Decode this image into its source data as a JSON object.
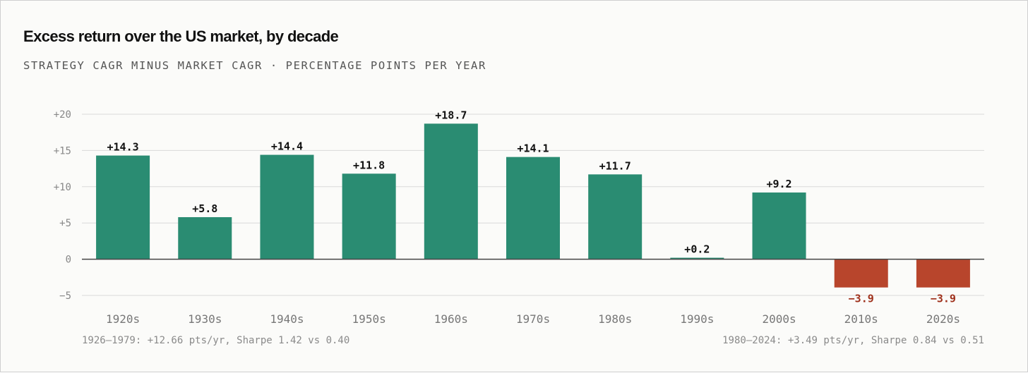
{
  "chart_data": {
    "type": "bar",
    "title": "Excess return over the US market, by decade",
    "subtitle": "STRATEGY CAGR MINUS MARKET CAGR · PERCENTAGE POINTS PER YEAR",
    "categories": [
      "1920s",
      "1930s",
      "1940s",
      "1950s",
      "1960s",
      "1970s",
      "1980s",
      "1990s",
      "2000s",
      "2010s",
      "2020s"
    ],
    "values": [
      14.3,
      5.8,
      14.4,
      11.8,
      18.7,
      14.1,
      11.7,
      0.2,
      9.2,
      -3.9,
      -3.9
    ],
    "data_labels": [
      "+14.3",
      "+5.8",
      "+14.4",
      "+11.8",
      "+18.7",
      "+14.1",
      "+11.7",
      "+0.2",
      "+9.2",
      "−3.9",
      "−3.9"
    ],
    "yticks": [
      20,
      15,
      10,
      5,
      0,
      -5
    ],
    "ytick_labels": [
      "+20",
      "+15",
      "+10",
      "+5",
      "0",
      "−5"
    ],
    "ylim": [
      -5,
      20
    ],
    "xlabel": "",
    "ylabel": "",
    "grid": true,
    "colors": {
      "positive": "#2a8c72",
      "negative": "#b8452c",
      "negative_label": "#9e2f1a",
      "zero_line": "#444444",
      "grid": "#d9d9d9"
    },
    "annotations": {
      "left": "1926–1979: +12.66 pts/yr, Sharpe 1.42 vs 0.40",
      "right": "1980–2024: +3.49 pts/yr, Sharpe 0.84 vs 0.51"
    }
  }
}
